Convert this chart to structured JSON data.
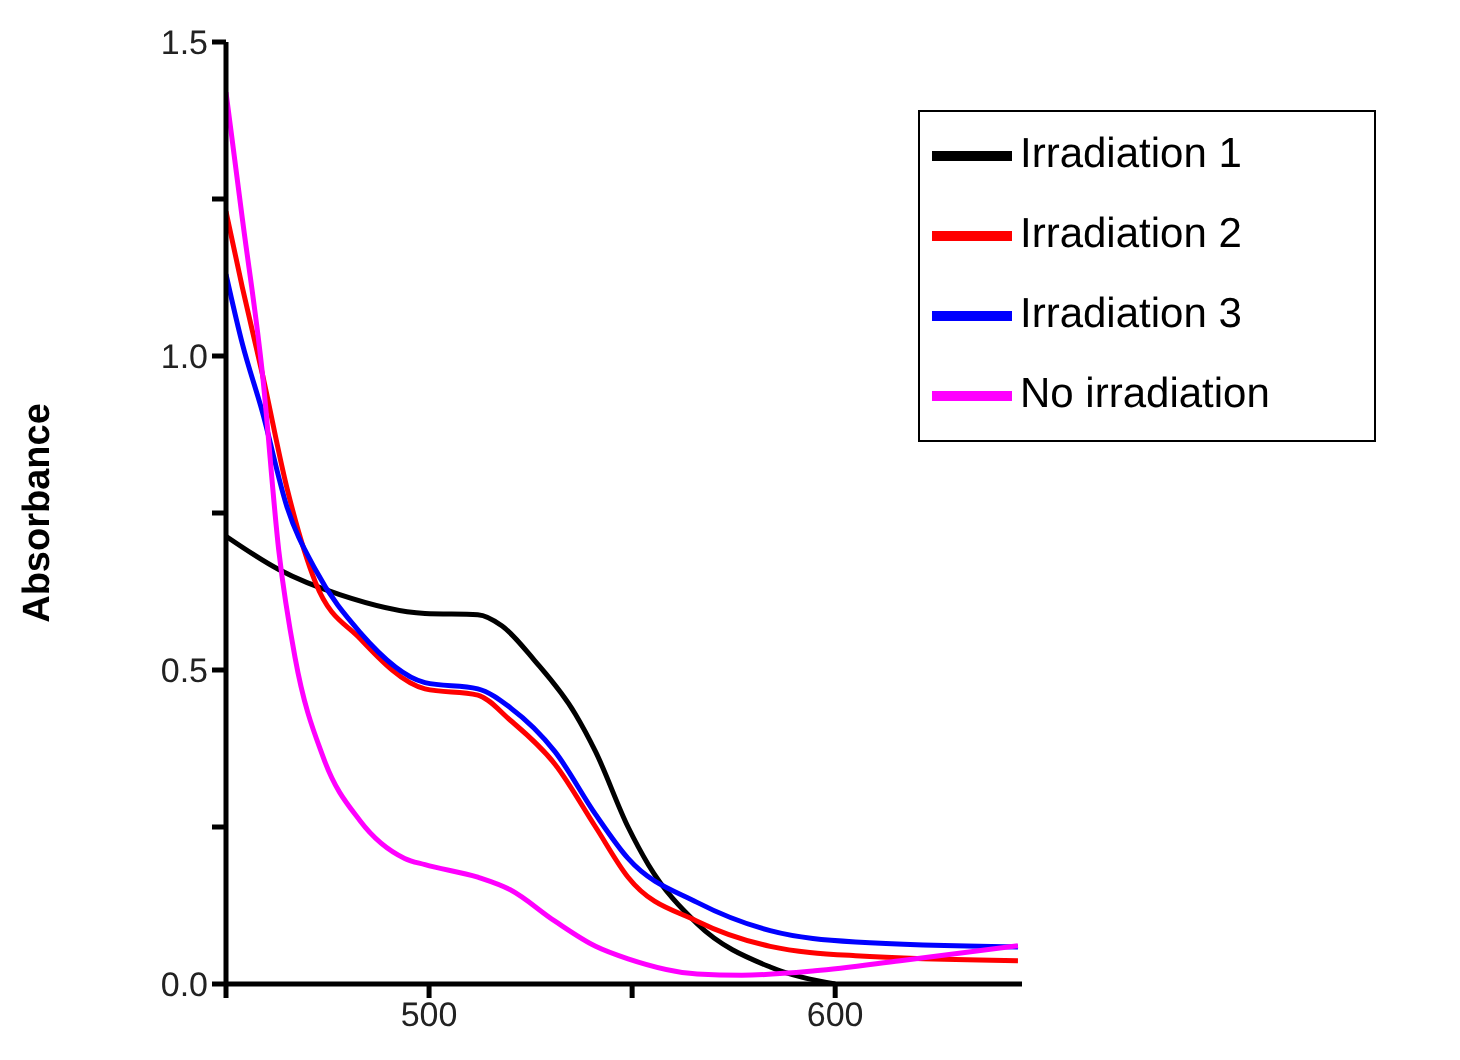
{
  "chart_data": {
    "type": "line",
    "ylabel": "Absorbance",
    "xlim": [
      450,
      646
    ],
    "xticks": [
      {
        "value": 450,
        "label": null
      },
      500,
      {
        "value": 550,
        "label": null
      },
      600
    ],
    "ylim": [
      0,
      1.5
    ],
    "yticks": [
      {
        "value": 0,
        "label": "0.0"
      },
      {
        "value": 0.25,
        "label": null
      },
      0.5,
      {
        "value": 0.75,
        "label": null
      },
      {
        "value": 1,
        "label": "1.0"
      },
      {
        "value": 1.25,
        "label": null
      },
      1.5
    ],
    "legend": "top right",
    "grid": false,
    "marker": "none",
    "line_style": "solid",
    "series": [
      {
        "name": "Irradiation 1",
        "color": "#000000",
        "x": [
          450,
          463,
          478,
          499,
          512,
          518,
          526,
          536,
          541,
          549,
          554,
          566,
          584,
          600
        ],
        "values": [
          0.713,
          0.66,
          0.62,
          0.59,
          0.588,
          0.57,
          0.515,
          0.43,
          0.37,
          0.25,
          0.19,
          0.096,
          0.027,
          0
        ]
      },
      {
        "name": "Irradiation 2",
        "color": "#ff0000",
        "x": [
          450,
          454,
          459,
          465,
          472,
          483,
          499,
          512,
          520,
          531,
          541,
          549,
          566,
          584,
          605,
          645
        ],
        "values": [
          1.23,
          1.11,
          0.97,
          0.79,
          0.64,
          0.55,
          0.47,
          0.46,
          0.42,
          0.35,
          0.25,
          0.17,
          0.1,
          0.06,
          0.045,
          0.037
        ]
      },
      {
        "name": "Irradiation 3",
        "color": "#0000ff",
        "x": [
          450,
          454,
          459,
          465,
          472,
          483,
          499,
          512,
          520,
          531,
          541,
          549,
          566,
          584,
          605,
          645
        ],
        "values": [
          1.13,
          1.02,
          0.91,
          0.76,
          0.66,
          0.56,
          0.48,
          0.47,
          0.44,
          0.37,
          0.27,
          0.2,
          0.13,
          0.085,
          0.067,
          0.059
        ]
      },
      {
        "name": "No irradiation",
        "color": "#ff00ff",
        "x": [
          450,
          454,
          459,
          463,
          467,
          474,
          483,
          494,
          499,
          512,
          520,
          531,
          541,
          549,
          566,
          577,
          595,
          616,
          645
        ],
        "values": [
          1.42,
          1.22,
          0.97,
          0.69,
          0.52,
          0.36,
          0.26,
          0.2,
          0.19,
          0.17,
          0.15,
          0.1,
          0.06,
          0.04,
          0.016,
          0.014,
          0.021,
          0.037,
          0.061
        ]
      }
    ]
  }
}
